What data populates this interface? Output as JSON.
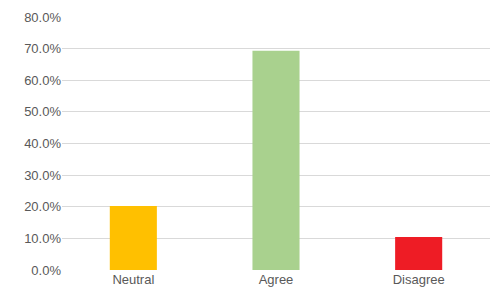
{
  "chart_data": {
    "type": "bar",
    "categories": [
      "Neutral",
      "Agree",
      "Disagree"
    ],
    "values": [
      20.2,
      69.3,
      10.4
    ],
    "colors": [
      "#ffc000",
      "#a9d18e",
      "#ee1c25"
    ],
    "ylim": [
      0,
      80
    ],
    "yticks": [
      {
        "value": 0,
        "label": "0.0%"
      },
      {
        "value": 10,
        "label": "10.0%"
      },
      {
        "value": 20,
        "label": "20.0%"
      },
      {
        "value": 30,
        "label": "30.0%"
      },
      {
        "value": 40,
        "label": "40.0%"
      },
      {
        "value": 50,
        "label": "50.0%"
      },
      {
        "value": 60,
        "label": "60.0%"
      },
      {
        "value": 70,
        "label": "70.0%"
      },
      {
        "value": 80,
        "label": "80.0%"
      }
    ],
    "grid": true
  }
}
